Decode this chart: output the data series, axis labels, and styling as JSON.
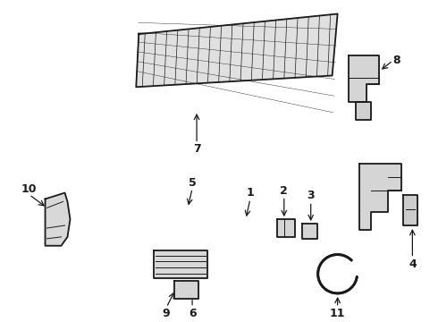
{
  "bg_color": "#ffffff",
  "lc": "#1a1a1a",
  "lw_thick": 2.0,
  "lw_med": 1.3,
  "lw_thin": 0.7,
  "fig_w": 4.9,
  "fig_h": 3.6,
  "dpi": 100
}
